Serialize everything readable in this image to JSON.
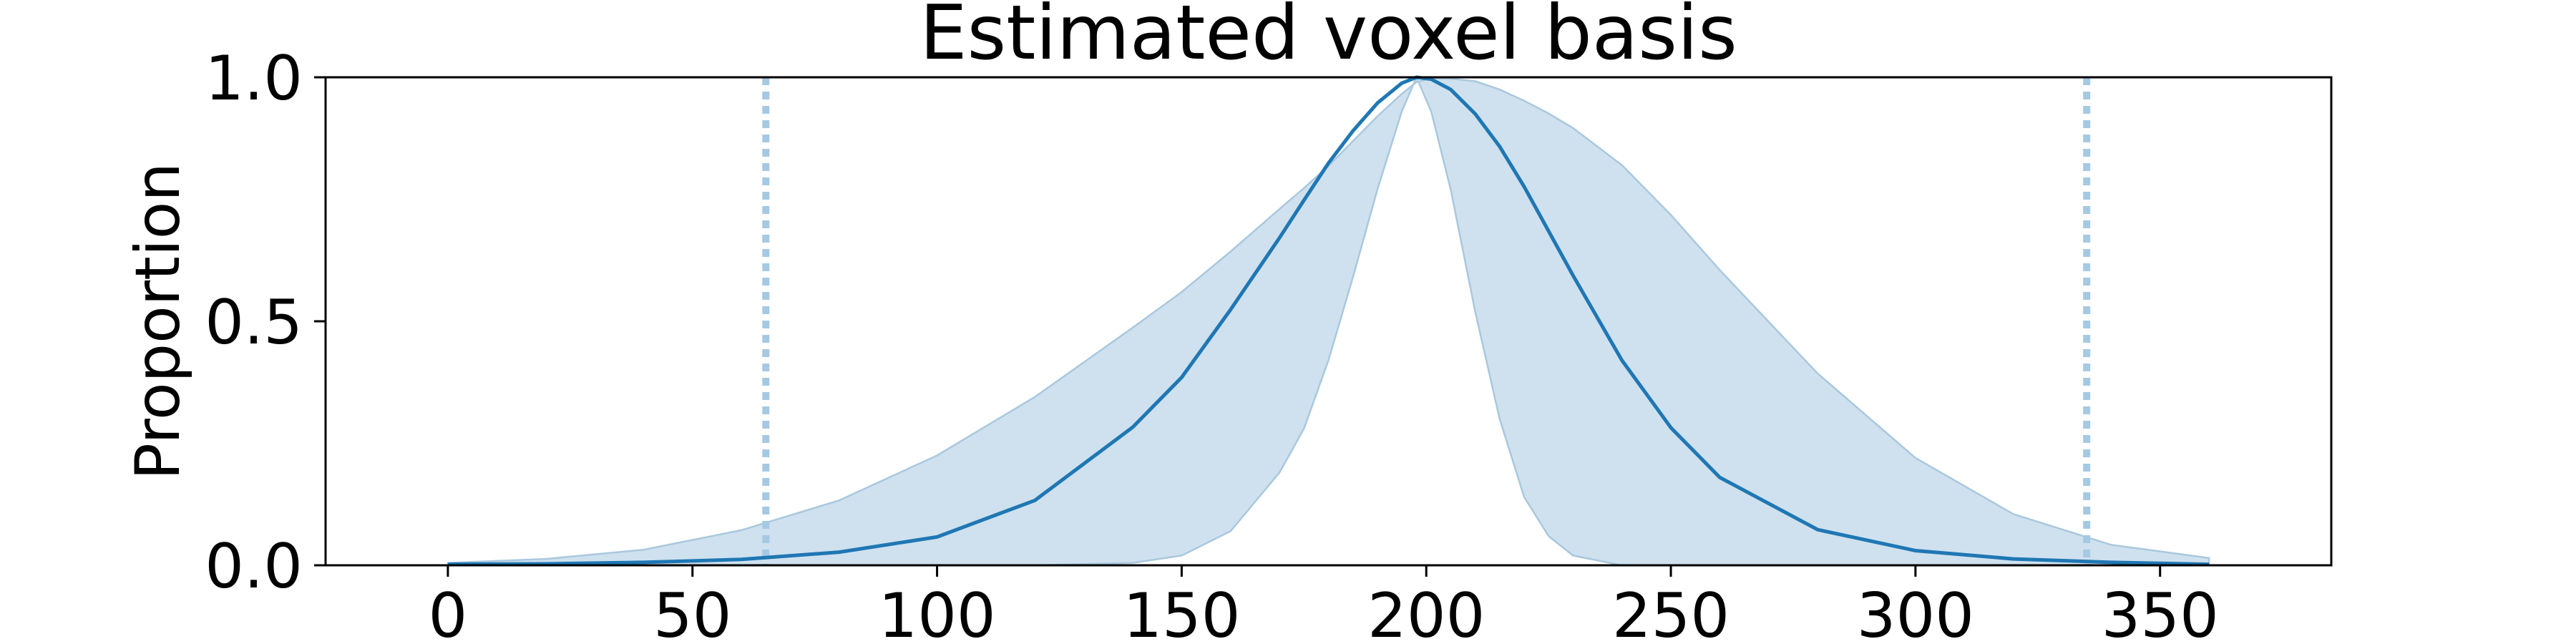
{
  "chart_data": {
    "type": "area",
    "title": "Estimated voxel basis",
    "xlabel": "",
    "ylabel": "Proportion",
    "xlim": [
      -25,
      385
    ],
    "ylim": [
      0.0,
      1.0
    ],
    "x_ticks": [
      0,
      50,
      100,
      150,
      200,
      250,
      300,
      350
    ],
    "x_tick_labels": [
      "0",
      "50",
      "100",
      "150",
      "200",
      "250",
      "300",
      "350"
    ],
    "y_ticks": [
      0.0,
      0.5,
      1.0
    ],
    "y_tick_labels": [
      "0.0",
      "0.5",
      "1.0"
    ],
    "grid": false,
    "legend": "none",
    "colors": {
      "line": "#1f77b4",
      "band": "#cfe1ee",
      "band_edge": "#a9c8de",
      "vline": "#a6c9e3"
    },
    "x": [
      0,
      20,
      40,
      60,
      80,
      100,
      120,
      140,
      150,
      160,
      170,
      175,
      180,
      185,
      190,
      195,
      198,
      201,
      205,
      210,
      215,
      220,
      225,
      230,
      240,
      250,
      260,
      280,
      300,
      320,
      340,
      360
    ],
    "series": [
      {
        "role": "center",
        "values": [
          0.002,
          0.003,
          0.006,
          0.012,
          0.027,
          0.058,
          0.133,
          0.283,
          0.385,
          0.524,
          0.671,
          0.748,
          0.824,
          0.89,
          0.947,
          0.988,
          1.0,
          0.996,
          0.975,
          0.925,
          0.858,
          0.776,
          0.685,
          0.594,
          0.42,
          0.282,
          0.18,
          0.073,
          0.03,
          0.013,
          0.006,
          0.002
        ]
      },
      {
        "role": "band-upper",
        "values": [
          0.005,
          0.013,
          0.032,
          0.072,
          0.133,
          0.225,
          0.345,
          0.487,
          0.56,
          0.643,
          0.73,
          0.773,
          0.818,
          0.869,
          0.92,
          0.966,
          0.99,
          0.998,
          0.997,
          0.992,
          0.975,
          0.952,
          0.926,
          0.896,
          0.82,
          0.718,
          0.605,
          0.393,
          0.22,
          0.105,
          0.042,
          0.015
        ]
      },
      {
        "role": "band-lower",
        "values": [
          0.0,
          0.0,
          0.0,
          0.0,
          0.0,
          0.0,
          0.0,
          0.005,
          0.02,
          0.07,
          0.19,
          0.28,
          0.42,
          0.59,
          0.77,
          0.93,
          1.0,
          0.93,
          0.77,
          0.52,
          0.3,
          0.14,
          0.06,
          0.02,
          0.0,
          0.0,
          0.0,
          0.0,
          0.0,
          0.0,
          0.0,
          0.0
        ]
      }
    ],
    "reference_lines_x": [
      65,
      335
    ]
  }
}
